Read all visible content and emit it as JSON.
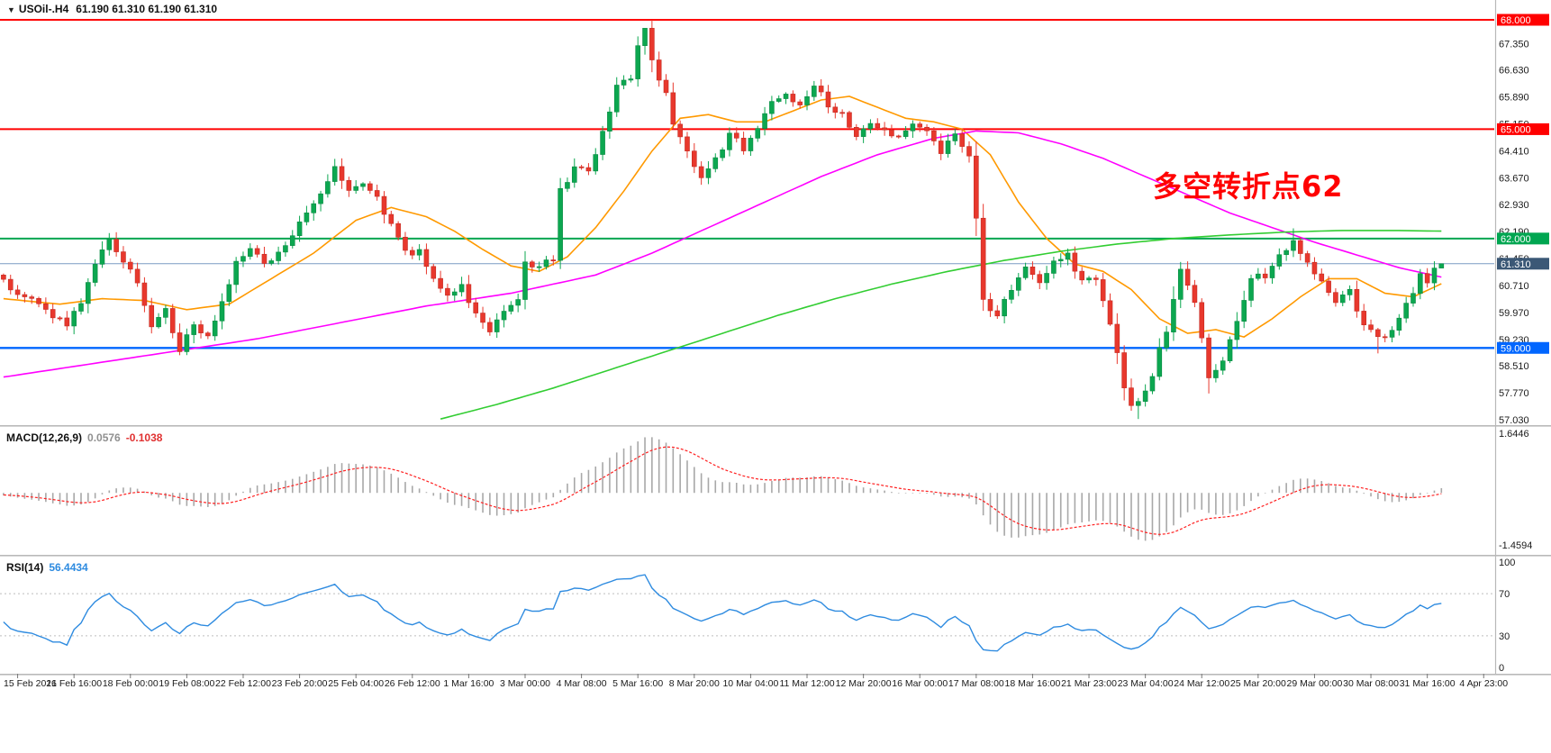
{
  "window": {
    "symbol_timeframe": "USOil-.H4",
    "ohlc": "61.190 61.310 61.190 61.310",
    "marker": "▼"
  },
  "annotation": {
    "text": "多空转折点62",
    "color": "#ff0000"
  },
  "colors": {
    "bull": "#0ca750",
    "bull_stroke": "#0a8b43",
    "bear": "#e8382d",
    "bear_stroke": "#c42b22",
    "axis_text": "#1a1a1a",
    "separator": "#b9b9b9",
    "grid_level": "#bdbdbd",
    "background": "#ffffff"
  },
  "chart_data": {
    "type": "candlestick",
    "title": "USOil-.H4 61.190 61.310 61.190 61.310",
    "symbol": "USOil-.H4",
    "timeframe": "H4",
    "current_bar": {
      "open": "61.190",
      "high": "61.310",
      "low": "61.190",
      "close": "61.310"
    },
    "y_axis": {
      "price_max": 68.0,
      "price_min": 57.03,
      "labels": [
        "67.350",
        "66.630",
        "65.890",
        "65.150",
        "64.410",
        "63.670",
        "62.930",
        "62.190",
        "61.450",
        "60.710",
        "59.970",
        "59.230",
        "58.510",
        "57.770",
        "57.030"
      ]
    },
    "x_axis": {
      "labels": [
        "15 Feb 2021",
        "16 Feb 16:00",
        "18 Feb 00:00",
        "19 Feb 08:00",
        "22 Feb 12:00",
        "23 Feb 20:00",
        "25 Feb 04:00",
        "26 Feb 12:00",
        "1 Mar 16:00",
        "3 Mar 00:00",
        "4 Mar 08:00",
        "5 Mar 16:00",
        "8 Mar 20:00",
        "10 Mar 04:00",
        "11 Mar 12:00",
        "12 Mar 20:00",
        "16 Mar 00:00",
        "17 Mar 08:00",
        "18 Mar 16:00",
        "21 Mar 23:00",
        "23 Mar 04:00",
        "24 Mar 12:00",
        "25 Mar 20:00",
        "29 Mar 00:00",
        "30 Mar 08:00",
        "31 Mar 16:00",
        "4 Apr 23:00"
      ]
    },
    "bars": {
      "count": 205,
      "slots": 212,
      "close_path_anchors": [
        [
          0,
          61.0
        ],
        [
          2,
          60.6
        ],
        [
          5,
          60.3
        ],
        [
          8,
          59.9
        ],
        [
          10,
          59.62
        ],
        [
          12,
          60.2
        ],
        [
          14,
          61.3
        ],
        [
          16,
          62.0
        ],
        [
          18,
          61.4
        ],
        [
          20,
          60.7
        ],
        [
          22,
          59.5
        ],
        [
          24,
          60.0
        ],
        [
          26,
          58.95
        ],
        [
          28,
          59.6
        ],
        [
          30,
          59.25
        ],
        [
          32,
          60.2
        ],
        [
          34,
          61.4
        ],
        [
          36,
          61.8
        ],
        [
          38,
          61.3
        ],
        [
          40,
          61.7
        ],
        [
          42,
          62.1
        ],
        [
          44,
          62.8
        ],
        [
          46,
          63.3
        ],
        [
          48,
          64.0
        ],
        [
          50,
          63.4
        ],
        [
          52,
          63.6
        ],
        [
          54,
          63.1
        ],
        [
          56,
          62.4
        ],
        [
          58,
          61.7
        ],
        [
          60,
          61.6
        ],
        [
          62,
          61.0
        ],
        [
          64,
          60.4
        ],
        [
          66,
          60.7
        ],
        [
          68,
          60.0
        ],
        [
          70,
          59.5
        ],
        [
          72,
          59.9
        ],
        [
          74,
          60.3
        ],
        [
          75,
          61.4
        ],
        [
          77,
          61.2
        ],
        [
          78,
          61.4
        ],
        [
          79,
          61.5
        ],
        [
          80,
          63.3
        ],
        [
          82,
          64.0
        ],
        [
          84,
          63.8
        ],
        [
          86,
          64.9
        ],
        [
          88,
          66.2
        ],
        [
          90,
          66.3
        ],
        [
          91,
          67.3
        ],
        [
          92,
          67.85
        ],
        [
          93,
          66.8
        ],
        [
          95,
          66.0
        ],
        [
          96,
          65.1
        ],
        [
          98,
          64.3
        ],
        [
          100,
          63.7
        ],
        [
          102,
          64.2
        ],
        [
          104,
          64.8
        ],
        [
          106,
          64.5
        ],
        [
          108,
          65.0
        ],
        [
          110,
          65.7
        ],
        [
          112,
          66.0
        ],
        [
          114,
          65.6
        ],
        [
          116,
          66.2
        ],
        [
          118,
          65.7
        ],
        [
          120,
          65.4
        ],
        [
          122,
          64.8
        ],
        [
          124,
          65.2
        ],
        [
          126,
          65.0
        ],
        [
          128,
          64.7
        ],
        [
          130,
          65.2
        ],
        [
          132,
          65.0
        ],
        [
          134,
          64.4
        ],
        [
          136,
          64.8
        ],
        [
          138,
          64.3
        ],
        [
          139,
          62.6
        ],
        [
          140,
          60.3
        ],
        [
          142,
          59.9
        ],
        [
          144,
          60.6
        ],
        [
          146,
          61.2
        ],
        [
          148,
          60.8
        ],
        [
          150,
          61.3
        ],
        [
          152,
          61.5
        ],
        [
          154,
          60.9
        ],
        [
          156,
          60.8
        ],
        [
          158,
          59.6
        ],
        [
          160,
          58.0
        ],
        [
          161,
          57.4
        ],
        [
          163,
          57.8
        ],
        [
          164,
          58.3
        ],
        [
          166,
          59.5
        ],
        [
          168,
          61.1
        ],
        [
          170,
          60.2
        ],
        [
          172,
          58.2
        ],
        [
          174,
          58.6
        ],
        [
          176,
          59.8
        ],
        [
          178,
          60.9
        ],
        [
          180,
          61.0
        ],
        [
          182,
          61.5
        ],
        [
          184,
          61.9
        ],
        [
          186,
          61.4
        ],
        [
          188,
          60.8
        ],
        [
          190,
          60.3
        ],
        [
          192,
          60.5
        ],
        [
          194,
          59.6
        ],
        [
          196,
          59.2
        ],
        [
          198,
          59.4
        ],
        [
          200,
          60.2
        ],
        [
          202,
          61.0
        ],
        [
          203,
          60.7
        ],
        [
          204,
          61.19
        ],
        [
          205,
          61.31
        ]
      ],
      "wick_overrides": [
        {
          "i": 92,
          "high": 68.0
        },
        {
          "i": 161,
          "low": 57.05
        },
        {
          "i": 25,
          "low": 58.8
        },
        {
          "i": 48,
          "high": 64.2
        },
        {
          "i": 15,
          "high": 62.15
        },
        {
          "i": 171,
          "low": 57.75
        },
        {
          "i": 195,
          "low": 58.85
        },
        {
          "i": 183,
          "high": 62.28
        }
      ]
    },
    "horizontal_lines": [
      {
        "price": 68.0,
        "label": "68.000",
        "color": "#ff0000",
        "width": 2,
        "box": "#ff0000"
      },
      {
        "price": 65.0,
        "label": "65.000",
        "color": "#ff0000",
        "width": 2,
        "box": "#ff0000"
      },
      {
        "price": 62.0,
        "label": "62.000",
        "color": "#00a651",
        "width": 2,
        "box": "#00a651"
      },
      {
        "price": 59.0,
        "label": "59.000",
        "color": "#0066ff",
        "width": 2.4,
        "box": "#0066ff"
      },
      {
        "price": 61.31,
        "label": "61.310",
        "color": "#7a9cc4",
        "width": 1,
        "box": "#3b5876",
        "current": true
      }
    ],
    "moving_averages": [
      {
        "name": "ma-fast",
        "color": "#ff9900",
        "points": [
          [
            0,
            60.35
          ],
          [
            8,
            60.2
          ],
          [
            14,
            60.35
          ],
          [
            20,
            60.3
          ],
          [
            26,
            60.05
          ],
          [
            32,
            60.2
          ],
          [
            38,
            60.9
          ],
          [
            44,
            61.6
          ],
          [
            50,
            62.5
          ],
          [
            55,
            62.85
          ],
          [
            60,
            62.6
          ],
          [
            64,
            62.2
          ],
          [
            68,
            61.7
          ],
          [
            72,
            61.25
          ],
          [
            76,
            61.1
          ],
          [
            80,
            61.5
          ],
          [
            84,
            62.3
          ],
          [
            88,
            63.3
          ],
          [
            92,
            64.4
          ],
          [
            96,
            65.3
          ],
          [
            100,
            65.4
          ],
          [
            104,
            65.2
          ],
          [
            108,
            65.2
          ],
          [
            112,
            65.5
          ],
          [
            116,
            65.8
          ],
          [
            120,
            65.9
          ],
          [
            124,
            65.6
          ],
          [
            128,
            65.3
          ],
          [
            132,
            65.2
          ],
          [
            136,
            65.0
          ],
          [
            140,
            64.3
          ],
          [
            144,
            63.0
          ],
          [
            148,
            62.0
          ],
          [
            152,
            61.3
          ],
          [
            156,
            61.1
          ],
          [
            160,
            60.6
          ],
          [
            164,
            59.8
          ],
          [
            168,
            59.4
          ],
          [
            172,
            59.5
          ],
          [
            176,
            59.3
          ],
          [
            180,
            59.8
          ],
          [
            184,
            60.4
          ],
          [
            188,
            60.9
          ],
          [
            192,
            60.9
          ],
          [
            196,
            60.5
          ],
          [
            200,
            60.4
          ],
          [
            205,
            60.85
          ]
        ]
      },
      {
        "name": "ma-mid",
        "color": "#ff00ff",
        "points": [
          [
            0,
            58.2
          ],
          [
            12,
            58.55
          ],
          [
            24,
            58.9
          ],
          [
            36,
            59.25
          ],
          [
            48,
            59.7
          ],
          [
            60,
            60.15
          ],
          [
            72,
            60.5
          ],
          [
            84,
            61.0
          ],
          [
            92,
            61.6
          ],
          [
            100,
            62.3
          ],
          [
            108,
            63.0
          ],
          [
            116,
            63.7
          ],
          [
            124,
            64.3
          ],
          [
            132,
            64.75
          ],
          [
            138,
            64.95
          ],
          [
            144,
            64.9
          ],
          [
            150,
            64.6
          ],
          [
            156,
            64.2
          ],
          [
            162,
            63.7
          ],
          [
            168,
            63.2
          ],
          [
            174,
            62.7
          ],
          [
            180,
            62.3
          ],
          [
            186,
            61.9
          ],
          [
            192,
            61.55
          ],
          [
            198,
            61.2
          ],
          [
            205,
            60.9
          ]
        ]
      },
      {
        "name": "ma-slow",
        "color": "#32cd32",
        "points": [
          [
            62,
            57.05
          ],
          [
            70,
            57.45
          ],
          [
            78,
            57.9
          ],
          [
            86,
            58.4
          ],
          [
            94,
            58.9
          ],
          [
            102,
            59.4
          ],
          [
            110,
            59.9
          ],
          [
            118,
            60.35
          ],
          [
            126,
            60.75
          ],
          [
            134,
            61.1
          ],
          [
            142,
            61.4
          ],
          [
            150,
            61.65
          ],
          [
            158,
            61.85
          ],
          [
            166,
            62.0
          ],
          [
            174,
            62.1
          ],
          [
            182,
            62.18
          ],
          [
            190,
            62.22
          ],
          [
            198,
            62.22
          ],
          [
            205,
            62.2
          ]
        ]
      }
    ],
    "indicators": [
      {
        "type": "macd",
        "label": "MACD(12,26,9)",
        "fast": 12,
        "slow": 26,
        "signal": 9,
        "value_main": "0.0576",
        "value_signal": "-0.1038",
        "axis_max": 1.6446,
        "axis_min": -1.4594,
        "axis_max_label": "1.6446",
        "axis_min_label": "-1.4594",
        "hist_color": "#a8a8a8",
        "signal_color": "#ff2020"
      },
      {
        "type": "rsi",
        "label": "RSI(14)",
        "period": 14,
        "value": "56.4434",
        "levels": [
          70,
          30
        ],
        "axis_labels": [
          [
            "100",
            100
          ],
          [
            "70",
            70
          ],
          [
            "30",
            30
          ],
          [
            "0",
            0
          ]
        ],
        "line_color": "#2e8be0"
      }
    ],
    "annotation": {
      "text": "多空转折点62",
      "color": "#ff0000"
    }
  }
}
